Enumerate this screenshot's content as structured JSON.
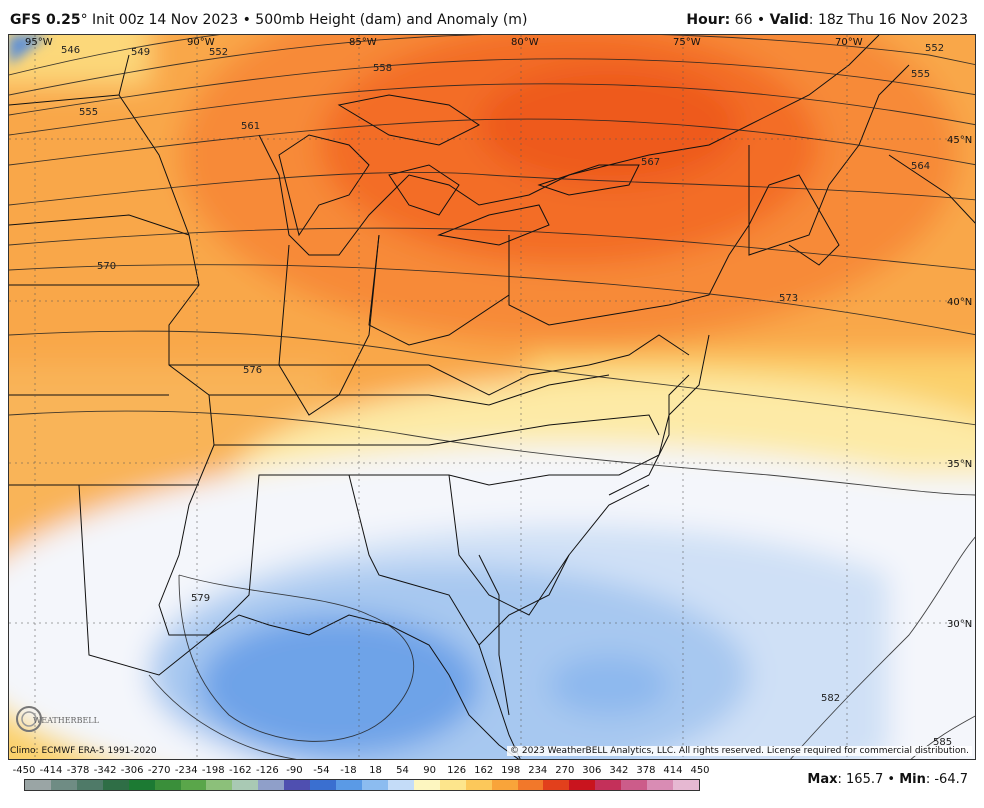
{
  "header": {
    "model": "GFS 0.25",
    "degree": "°",
    "init": " Init 00z 14 Nov 2023",
    "sep": " • ",
    "product": "500mb Height (dam) and Anomaly (m)",
    "hour_label": "Hour:",
    "hour_value": " 66",
    "valid_label": "Valid",
    "valid_value": ": 18z Thu 16 Nov 2023"
  },
  "map": {
    "longitudes": [
      "95°W",
      "90°W",
      "85°W",
      "80°W",
      "75°W",
      "70°W"
    ],
    "latitudes": [
      "45°N",
      "40°N",
      "35°N",
      "30°N"
    ],
    "contour_labels": [
      "546",
      "549",
      "552",
      "555",
      "558",
      "561",
      "564",
      "567",
      "570",
      "573",
      "576",
      "579",
      "582",
      "585",
      "552",
      "555"
    ]
  },
  "footer": {
    "climo": "Climo: ECMWF ERA-5 1991-2020",
    "copyright": "© 2023 WeatherBELL Analytics, LLC. All rights reserved. License required for commercial distribution.",
    "logo": "WEATHERBELL",
    "max_label": "Max",
    "max_value": ": 165.7",
    "sep": " • ",
    "min_label": "Min",
    "min_value": ": -64.7"
  },
  "legend": {
    "labels": [
      "-450",
      "-414",
      "-378",
      "-342",
      "-306",
      "-270",
      "-234",
      "-198",
      "-162",
      "-126",
      "-90",
      "-54",
      "-18",
      "18",
      "54",
      "90",
      "126",
      "162",
      "198",
      "234",
      "270",
      "306",
      "342",
      "378",
      "414",
      "450"
    ],
    "colors": [
      "#9aa5a5",
      "#6f8c84",
      "#4f7a68",
      "#2f6e46",
      "#1c7a33",
      "#3a8f3a",
      "#5aa64a",
      "#8cc07a",
      "#a9c9b4",
      "#8f9fc9",
      "#4f4fb0",
      "#3a6fd0",
      "#5a9ae6",
      "#8cbcf0",
      "#c4dcf8",
      "#fdf6c0",
      "#fde58c",
      "#fcc85a",
      "#f9a43a",
      "#f2782a",
      "#e2401c",
      "#c9141e",
      "#c4305a",
      "#cc5c8a",
      "#d98cb4",
      "#e6b8d2"
    ]
  }
}
